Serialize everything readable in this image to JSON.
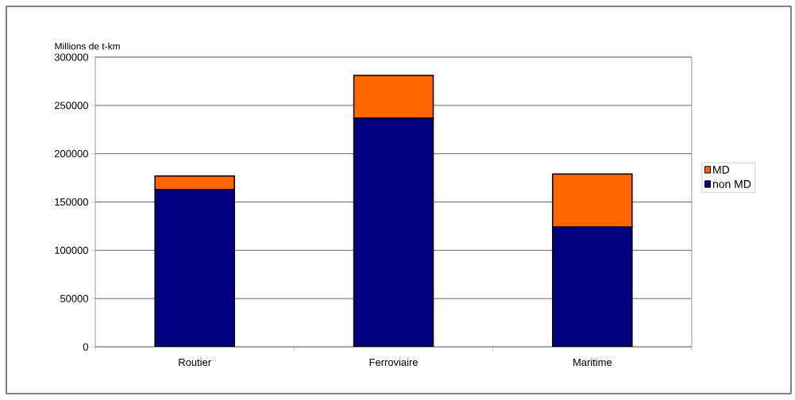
{
  "chart_data": {
    "type": "bar",
    "stacked": true,
    "ylabel": "Millions de t-km",
    "categories": [
      "Routier",
      "Ferroviaire",
      "Maritime"
    ],
    "series": [
      {
        "name": "non MD",
        "color": "#000080",
        "values": [
          163000,
          237000,
          124000
        ]
      },
      {
        "name": "MD",
        "color": "#ff6600",
        "values": [
          14000,
          44000,
          55000
        ]
      }
    ],
    "ylim": [
      0,
      300000
    ],
    "yticks": [
      0,
      50000,
      100000,
      150000,
      200000,
      250000,
      300000
    ],
    "grid": "y",
    "legend": "right"
  }
}
